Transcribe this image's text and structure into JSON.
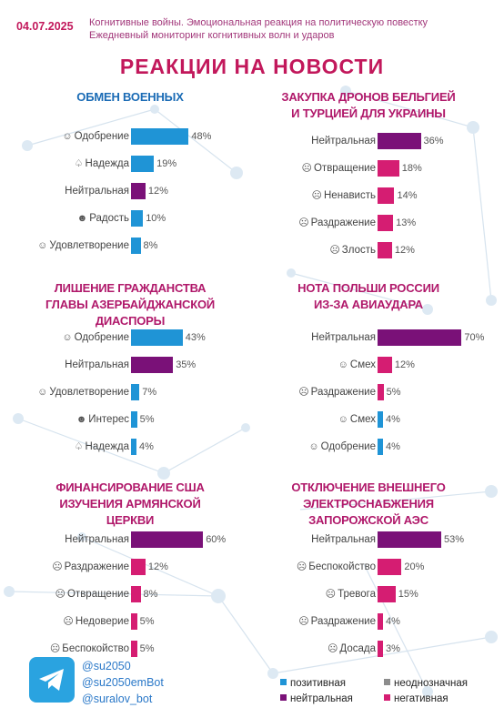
{
  "header": {
    "date": "04.07.2025",
    "subtitle_line1": "Когнитивные войны. Эмоциональная реакция на политическую повестку",
    "subtitle_line2": "Ежедневный мониторинг когнитивных волн и ударов"
  },
  "title": "РЕАКЦИИ НА НОВОСТИ",
  "colors": {
    "positive": "#1f94d6",
    "neutral": "#7a1178",
    "negative": "#d51d72",
    "ambiguous": "#8c8c8c",
    "accent": "#c2185b"
  },
  "chart_data": [
    {
      "type": "bar",
      "title_lines": [
        "ОБМЕН ВОЕННЫХ"
      ],
      "categories": [
        "Одобрение",
        "Надежда",
        "Нейтральная",
        "Радость",
        "Удовлетворение"
      ],
      "icons": [
        "☺",
        "♤",
        "",
        "☻",
        "☺"
      ],
      "values": [
        48,
        19,
        12,
        10,
        8
      ],
      "value_labels": [
        "48%",
        "19%",
        "12%",
        "10%",
        "8%"
      ],
      "sentiment": [
        "positive",
        "positive",
        "neutral",
        "positive",
        "positive"
      ]
    },
    {
      "type": "bar",
      "title_lines": [
        "ЗАКУПКА ДРОНОВ БЕЛЬГИЕЙ",
        "И ТУРЦИЕЙ ДЛЯ УКРАИНЫ"
      ],
      "categories": [
        "Нейтральная",
        "Отвращение",
        "Ненависть",
        "Раздражение",
        "Злость"
      ],
      "icons": [
        "",
        "☹",
        "☹",
        "☹",
        "☹"
      ],
      "values": [
        36,
        18,
        14,
        13,
        12
      ],
      "value_labels": [
        "36%",
        "18%",
        "14%",
        "13%",
        "12%"
      ],
      "sentiment": [
        "neutral",
        "negative",
        "negative",
        "negative",
        "negative"
      ]
    },
    {
      "type": "bar",
      "title_lines": [
        "ЛИШЕНИЕ ГРАЖДАНСТВА",
        "ГЛАВЫ АЗЕРБАЙДЖАНСКОЙ",
        "ДИАСПОРЫ"
      ],
      "categories": [
        "Одобрение",
        "Нейтральная",
        "Удовлетворение",
        "Интерес",
        "Надежда"
      ],
      "icons": [
        "☺",
        "",
        "☺",
        "☻",
        "♤"
      ],
      "values": [
        43,
        35,
        7,
        5,
        4
      ],
      "value_labels": [
        "43%",
        "35%",
        "7%",
        "5%",
        "4%"
      ],
      "sentiment": [
        "positive",
        "neutral",
        "positive",
        "positive",
        "positive"
      ]
    },
    {
      "type": "bar",
      "title_lines": [
        "НОТА ПОЛЬШИ РОССИИ",
        "ИЗ-ЗА АВИАУДАРА"
      ],
      "categories": [
        "Нейтральная",
        "Смех",
        "Раздражение",
        "Смех",
        "Одобрение"
      ],
      "icons": [
        "",
        "☺",
        "☹",
        "☺",
        "☺"
      ],
      "values": [
        70,
        12,
        5,
        4,
        4
      ],
      "value_labels": [
        "70%",
        "12%",
        "5%",
        "4%",
        "4%"
      ],
      "sentiment": [
        "neutral",
        "negative",
        "negative",
        "positive",
        "positive"
      ]
    },
    {
      "type": "bar",
      "title_lines": [
        "ФИНАНСИРОВАНИЕ США",
        "ИЗУЧЕНИЯ АРМЯНСКОЙ",
        "ЦЕРКВИ"
      ],
      "categories": [
        "Нейтральная",
        "Раздражение",
        "Отвращение",
        "Недоверие",
        "Беспокойство"
      ],
      "icons": [
        "",
        "☹",
        "☹",
        "☹",
        "☹"
      ],
      "values": [
        60,
        12,
        8,
        5,
        5
      ],
      "value_labels": [
        "60%",
        "12%",
        "8%",
        "5%",
        "5%"
      ],
      "sentiment": [
        "neutral",
        "negative",
        "negative",
        "negative",
        "negative"
      ]
    },
    {
      "type": "bar",
      "title_lines": [
        "ОТКЛЮЧЕНИЕ ВНЕШНЕГО",
        "ЭЛЕКТРОСНАБЖЕНИЯ",
        "ЗАПОРОЖСКОЙ АЭС"
      ],
      "categories": [
        "Нейтральная",
        "Беспокойство",
        "Тревога",
        "Раздражение",
        "Досада"
      ],
      "icons": [
        "",
        "☹",
        "☹",
        "☹",
        "☹"
      ],
      "values": [
        53,
        20,
        15,
        4,
        3
      ],
      "value_labels": [
        "53%",
        "20%",
        "15%",
        "4%",
        "3%"
      ],
      "sentiment": [
        "neutral",
        "negative",
        "negative",
        "negative",
        "negative"
      ]
    }
  ],
  "footer": {
    "handles": [
      "@su2050",
      "@su2050emBot",
      "@suralov_bot"
    ],
    "telegram_icon": "telegram-icon"
  },
  "legend": [
    {
      "label": "позитивная",
      "sentiment": "positive"
    },
    {
      "label": "неоднозначная",
      "sentiment": "ambiguous"
    },
    {
      "label": "нейтральная",
      "sentiment": "neutral"
    },
    {
      "label": "негативная",
      "sentiment": "negative"
    }
  ]
}
